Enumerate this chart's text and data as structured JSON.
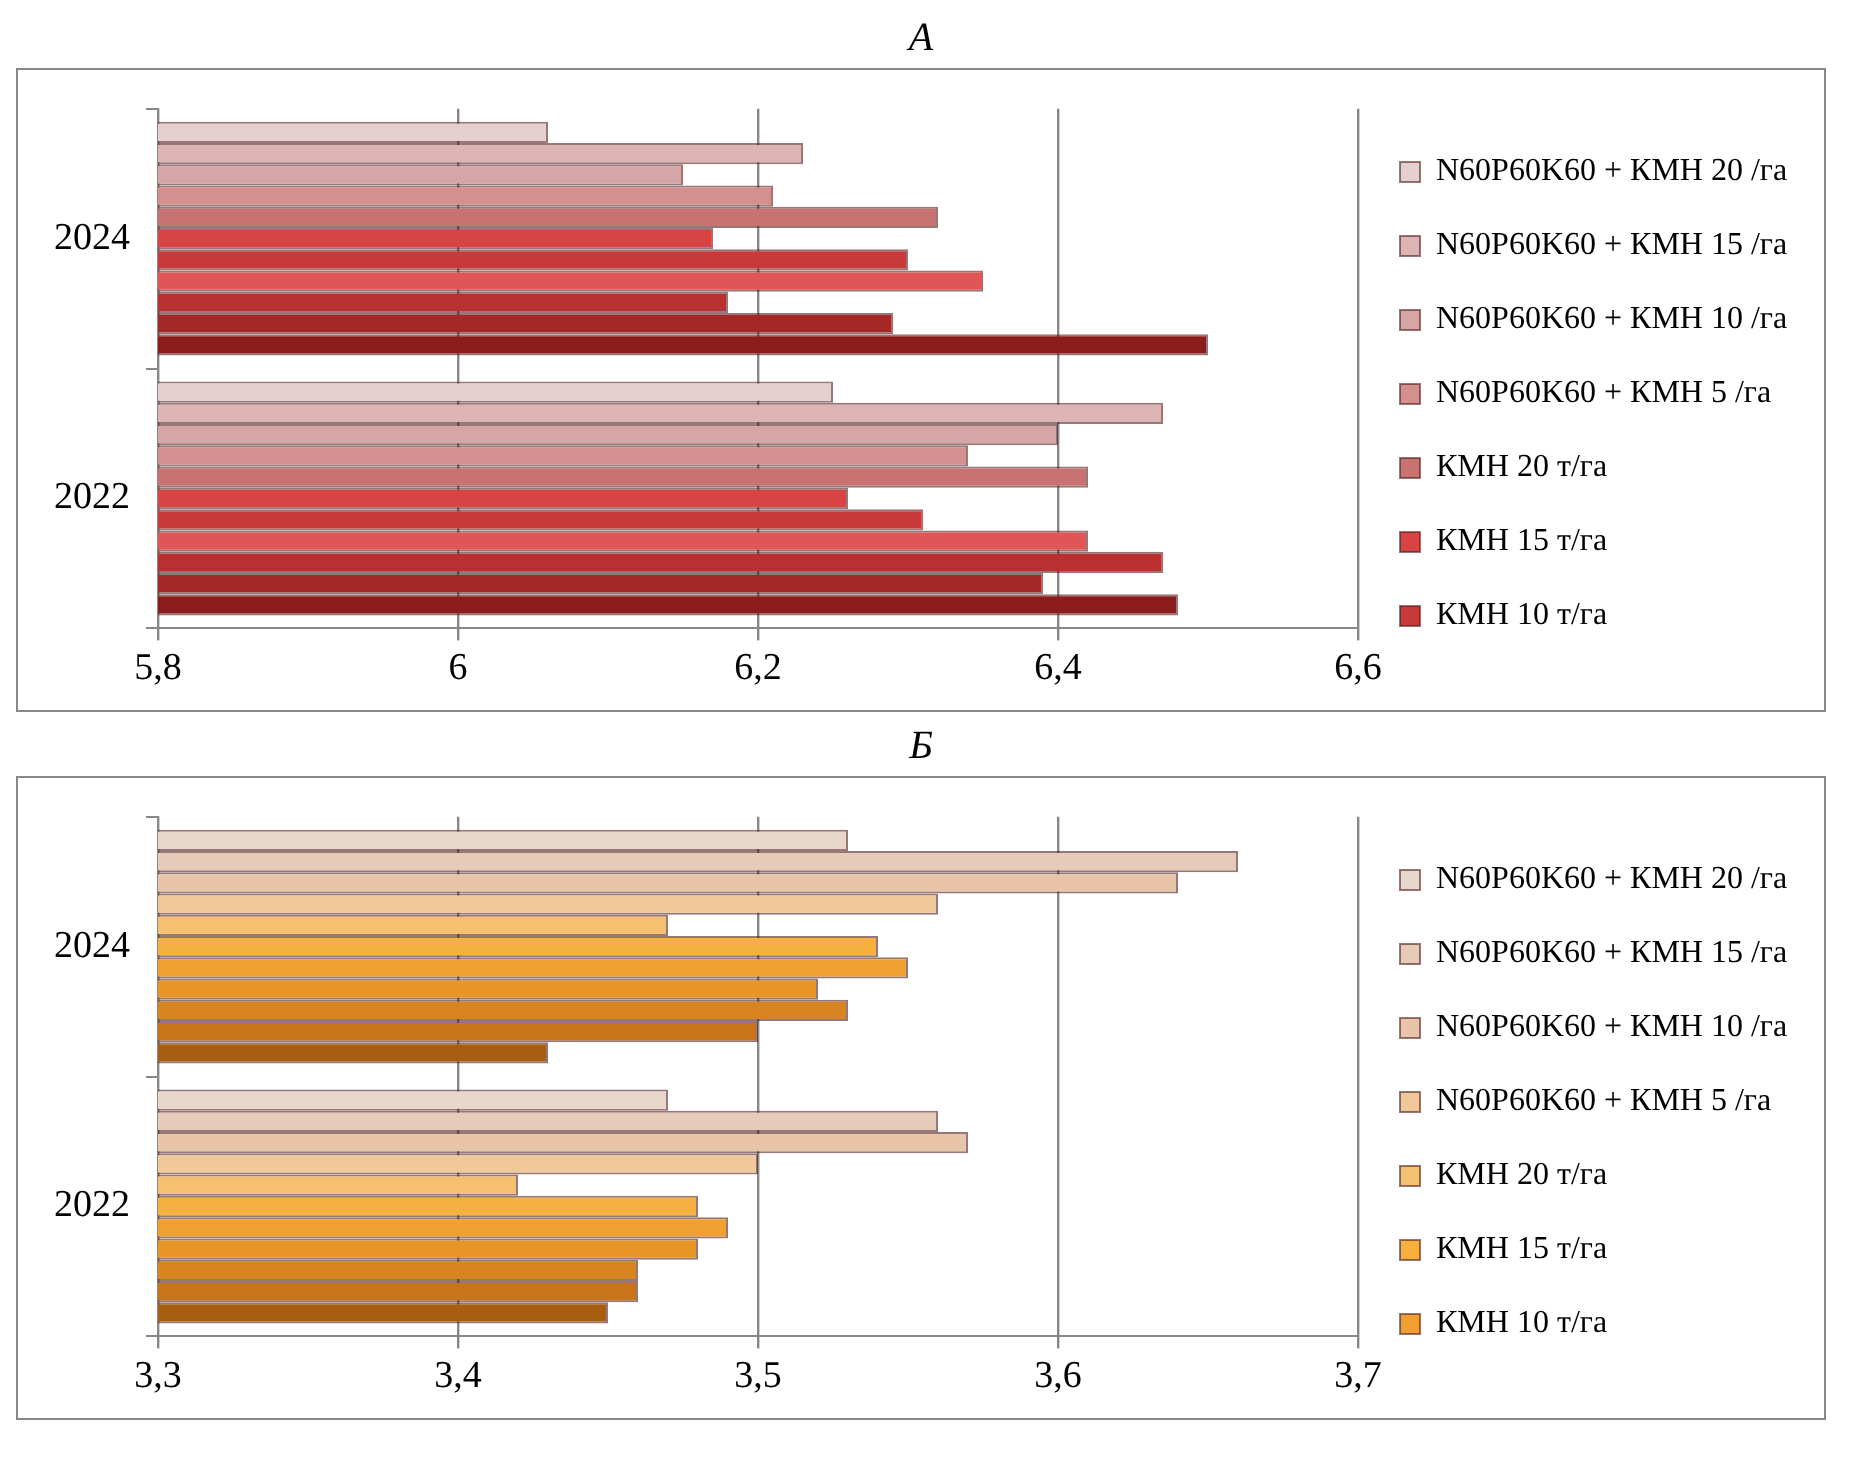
{
  "chart_data": [
    {
      "type": "bar",
      "title": "А",
      "orientation": "horizontal",
      "categories": [
        "2024",
        "2022"
      ],
      "series": [
        {
          "name": "N60P60K60 + КМН 20 /га",
          "color": "#e6cfcf",
          "values": [
            6.06,
            6.25
          ]
        },
        {
          "name": "N60P60K60 + КМН 15 /га",
          "color": "#dcb4b4",
          "values": [
            6.23,
            6.47
          ]
        },
        {
          "name": "N60P60K60 + КМН 10 /га",
          "color": "#d6a5a5",
          "values": [
            6.15,
            6.4
          ]
        },
        {
          "name": "N60P60K60 + КМН 5 /га",
          "color": "#d48f8f",
          "values": [
            6.21,
            6.34
          ]
        },
        {
          "name": "КМН 20 т/га",
          "color": "#c87272",
          "values": [
            6.32,
            6.42
          ]
        },
        {
          "name": "КМН 15 т/га",
          "color": "#d84444",
          "values": [
            6.17,
            6.26
          ]
        },
        {
          "name": "КМН 10 т/га",
          "color": "#c83a3a",
          "values": [
            6.3,
            6.31
          ]
        },
        {
          "color": "#e05555",
          "values": [
            6.35,
            6.42
          ]
        },
        {
          "color": "#b83030",
          "values": [
            6.18,
            6.47
          ]
        },
        {
          "color": "#a52828",
          "values": [
            6.29,
            6.39
          ]
        },
        {
          "color": "#8c1c1c",
          "values": [
            6.5,
            6.48
          ]
        }
      ],
      "xlim": [
        5.8,
        6.6
      ],
      "xticks": [
        {
          "value": 5.8,
          "label": "5,8"
        },
        6,
        {
          "value": 6.2,
          "label": "6,2"
        },
        {
          "value": 6.4,
          "label": "6,4"
        },
        {
          "value": 6.6,
          "label": "6,6"
        }
      ],
      "grid": "x",
      "legend": "right"
    },
    {
      "type": "bar",
      "title": "Б",
      "orientation": "horizontal",
      "categories": [
        "2024",
        "2022"
      ],
      "series": [
        {
          "name": "N60P60K60 + КМН 20 /га",
          "color": "#e8d8cc",
          "values": [
            3.53,
            3.47
          ]
        },
        {
          "name": "N60P60K60 + КМН 15 /га",
          "color": "#e6ccb8",
          "values": [
            3.66,
            3.56
          ]
        },
        {
          "name": "N60P60K60 + КМН 10 /га",
          "color": "#e8c4a8",
          "values": [
            3.64,
            3.57
          ]
        },
        {
          "name": "N60P60K60 + КМН 5 /га",
          "color": "#f0c89a",
          "values": [
            3.56,
            3.5
          ]
        },
        {
          "name": "КМН 20 т/га",
          "color": "#f5c070",
          "values": [
            3.47,
            3.42
          ]
        },
        {
          "name": "КМН 15 т/га",
          "color": "#f5b040",
          "values": [
            3.54,
            3.48
          ]
        },
        {
          "name": "КМН 10 т/га",
          "color": "#f0a030",
          "values": [
            3.55,
            3.49
          ]
        },
        {
          "color": "#e89528",
          "values": [
            3.52,
            3.48
          ]
        },
        {
          "color": "#d88420",
          "values": [
            3.53,
            3.46
          ]
        },
        {
          "color": "#c87418",
          "values": [
            3.5,
            3.46
          ]
        },
        {
          "color": "#a85e10",
          "values": [
            3.43,
            3.45
          ]
        }
      ],
      "xlim": [
        3.3,
        3.7
      ],
      "xticks": [
        {
          "value": 3.3,
          "label": "3,3"
        },
        {
          "value": 3.4,
          "label": "3,4"
        },
        {
          "value": 3.5,
          "label": "3,5"
        },
        {
          "value": 3.6,
          "label": "3,6"
        },
        {
          "value": 3.7,
          "label": "3,7"
        }
      ],
      "grid": "x",
      "legend": "right"
    }
  ]
}
